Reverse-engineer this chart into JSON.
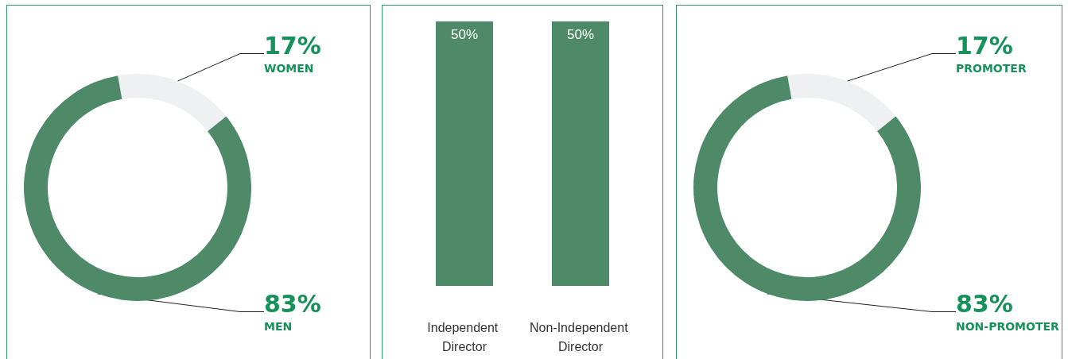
{
  "chart_data": [
    {
      "type": "donut",
      "categories": [
        "WOMEN",
        "MEN"
      ],
      "values": [
        17,
        83
      ],
      "value_labels": [
        "17%",
        "83%"
      ],
      "colors": [
        "#eff0f2",
        "#4e8a68"
      ],
      "legend": false
    },
    {
      "type": "bar",
      "categories": [
        "Independent Director",
        "Non-Independent Director"
      ],
      "values": [
        50,
        50
      ],
      "value_labels": [
        "50%",
        "50%"
      ],
      "color": "#4e8a68",
      "tick_labels": "x"
    },
    {
      "type": "donut",
      "categories": [
        "PROMOTER",
        "NON-PROMOTER"
      ],
      "values": [
        17,
        83
      ],
      "value_labels": [
        "17%",
        "83%"
      ],
      "colors": [
        "#eff0f2",
        "#4e8a68"
      ],
      "legend": false
    }
  ]
}
